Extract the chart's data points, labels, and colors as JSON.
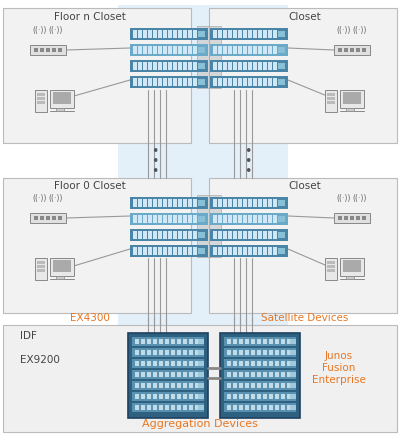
{
  "bg_color": "#ffffff",
  "light_blue_bg": "#cde3f5",
  "box_fill": "#f2f2f2",
  "box_border": "#bbbbbb",
  "switch_blue1": "#4a85a8",
  "switch_blue2": "#6aaac8",
  "switch_blue3": "#88c0d8",
  "agg_dark": "#2e6080",
  "agg_mid": "#5a90b0",
  "agg_light": "#a0c8dc",
  "gray_line": "#999999",
  "bracket_fill": "#cccccc",
  "bracket_edge": "#aaaaaa",
  "orange_text": "#e87722",
  "label_color": "#555555",
  "floor_n_label": "Floor n Closet",
  "floor_0_label": "Floor 0 Closet",
  "closet_label": "Closet",
  "ex4300_label": "EX4300",
  "satellite_label": "Satellite Devices",
  "idf_label": "IDF",
  "ex9200_label": "EX9200",
  "agg_label": "Aggregation Devices",
  "junos_label": "Junos\nFusion\nEnterprise"
}
